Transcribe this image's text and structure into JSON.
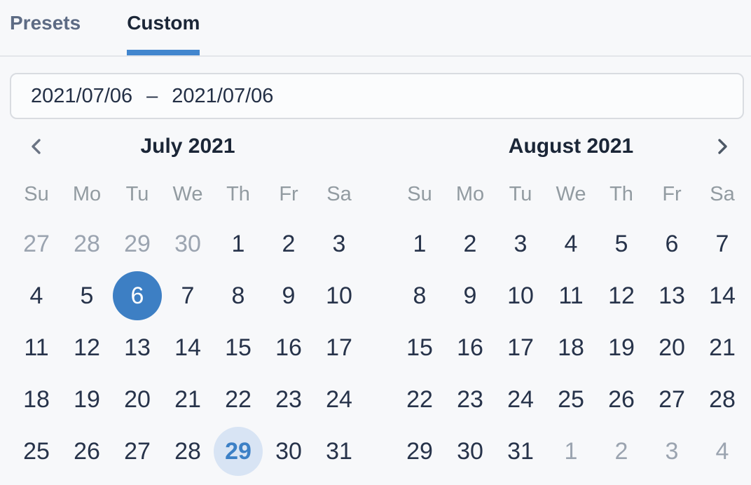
{
  "tabs": {
    "items": [
      {
        "label": "Presets",
        "active": false
      },
      {
        "label": "Custom",
        "active": true
      }
    ]
  },
  "date_input": {
    "start": "2021/07/06",
    "separator": "–",
    "end": "2021/07/06"
  },
  "weekdays": [
    "Su",
    "Mo",
    "Tu",
    "We",
    "Th",
    "Fr",
    "Sa"
  ],
  "calendars": [
    {
      "title": "July 2021",
      "nav": "prev",
      "days": [
        {
          "label": "27",
          "state": "outside"
        },
        {
          "label": "28",
          "state": "outside"
        },
        {
          "label": "29",
          "state": "outside"
        },
        {
          "label": "30",
          "state": "outside"
        },
        {
          "label": "1"
        },
        {
          "label": "2"
        },
        {
          "label": "3"
        },
        {
          "label": "4"
        },
        {
          "label": "5"
        },
        {
          "label": "6",
          "state": "selected"
        },
        {
          "label": "7"
        },
        {
          "label": "8"
        },
        {
          "label": "9"
        },
        {
          "label": "10"
        },
        {
          "label": "11"
        },
        {
          "label": "12"
        },
        {
          "label": "13"
        },
        {
          "label": "14"
        },
        {
          "label": "15"
        },
        {
          "label": "16"
        },
        {
          "label": "17"
        },
        {
          "label": "18"
        },
        {
          "label": "19"
        },
        {
          "label": "20"
        },
        {
          "label": "21"
        },
        {
          "label": "22"
        },
        {
          "label": "23"
        },
        {
          "label": "24"
        },
        {
          "label": "25"
        },
        {
          "label": "26"
        },
        {
          "label": "27"
        },
        {
          "label": "28"
        },
        {
          "label": "29",
          "state": "today"
        },
        {
          "label": "30"
        },
        {
          "label": "31"
        }
      ]
    },
    {
      "title": "August 2021",
      "nav": "next",
      "days": [
        {
          "label": "1"
        },
        {
          "label": "2"
        },
        {
          "label": "3"
        },
        {
          "label": "4"
        },
        {
          "label": "5"
        },
        {
          "label": "6"
        },
        {
          "label": "7"
        },
        {
          "label": "8"
        },
        {
          "label": "9"
        },
        {
          "label": "10"
        },
        {
          "label": "11"
        },
        {
          "label": "12"
        },
        {
          "label": "13"
        },
        {
          "label": "14"
        },
        {
          "label": "15"
        },
        {
          "label": "16"
        },
        {
          "label": "17"
        },
        {
          "label": "18"
        },
        {
          "label": "19"
        },
        {
          "label": "20"
        },
        {
          "label": "21"
        },
        {
          "label": "22"
        },
        {
          "label": "23"
        },
        {
          "label": "24"
        },
        {
          "label": "25"
        },
        {
          "label": "26"
        },
        {
          "label": "27"
        },
        {
          "label": "28"
        },
        {
          "label": "29"
        },
        {
          "label": "30"
        },
        {
          "label": "31"
        },
        {
          "label": "1",
          "state": "outside"
        },
        {
          "label": "2",
          "state": "outside"
        },
        {
          "label": "3",
          "state": "outside"
        },
        {
          "label": "4",
          "state": "outside"
        }
      ]
    }
  ],
  "icons": {
    "prev": "chevron-left-icon",
    "next": "chevron-right-icon"
  },
  "colors": {
    "background": "#f7f8fa",
    "accent_underline": "#4286ce",
    "selected_day_bg": "#3d7fc4",
    "selected_day_text": "#ffffff",
    "today_bg": "#d8e4f4",
    "today_text": "#3c80c6",
    "title_text": "#1b2637",
    "day_text": "#27334a",
    "muted_day_text": "#9ba4b0",
    "weekday_text": "#929ba1",
    "inactive_tab_text": "#5d6b84",
    "input_border": "#d9dce1",
    "chevron": "#6b7484"
  }
}
